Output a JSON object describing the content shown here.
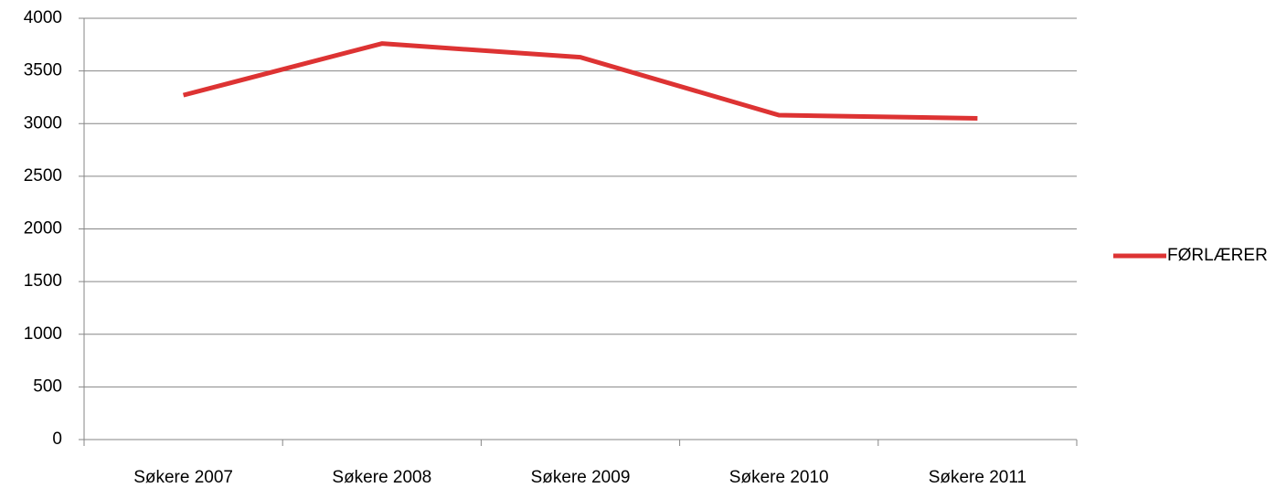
{
  "chart_data": {
    "type": "line",
    "categories": [
      "Søkere 2007",
      "Søkere 2008",
      "Søkere 2009",
      "Søkere 2010",
      "Søkere 2011"
    ],
    "series": [
      {
        "name": "FØRLÆRER",
        "color": "#dd3333",
        "values": [
          3270,
          3760,
          3630,
          3080,
          3050
        ]
      }
    ],
    "ylim": [
      0,
      4000
    ],
    "yticks": [
      0,
      500,
      1000,
      1500,
      2000,
      2500,
      3000,
      3500,
      4000
    ],
    "grid": true,
    "legend": "right"
  }
}
